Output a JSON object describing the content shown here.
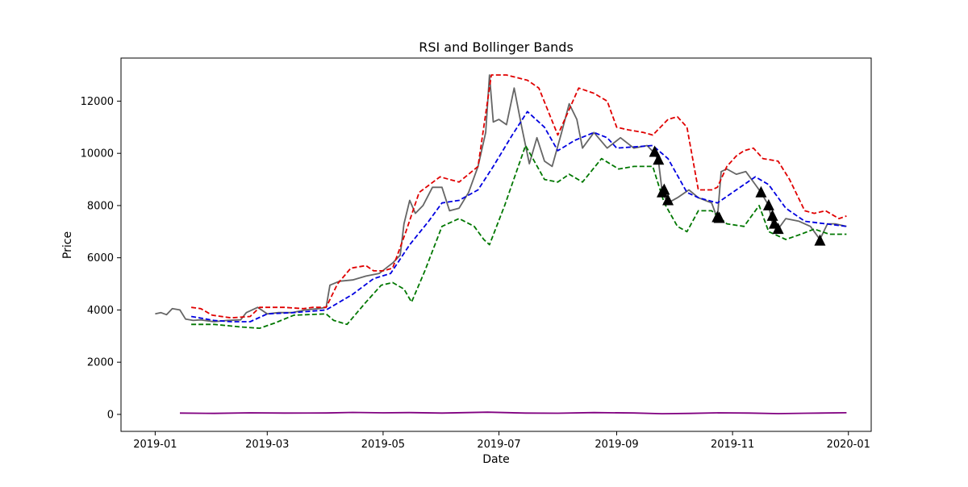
{
  "chart_data": {
    "type": "line",
    "title": "RSI and Bollinger Bands",
    "xlabel": "Date",
    "ylabel": "Price",
    "xlim": [
      "2018-12-14",
      "2020-01-13"
    ],
    "ylim": [
      -650,
      13650
    ],
    "x_ticks": [
      "2019-01-01",
      "2019-03-01",
      "2019-05-01",
      "2019-07-01",
      "2019-09-01",
      "2019-11-01",
      "2020-01-01"
    ],
    "x_tick_labels": [
      "2019-01",
      "2019-03",
      "2019-05",
      "2019-07",
      "2019-09",
      "2019-11",
      "2020-01"
    ],
    "y_ticks": [
      0,
      2000,
      4000,
      6000,
      8000,
      10000,
      12000
    ],
    "y_tick_labels": [
      "0",
      "2000",
      "4000",
      "6000",
      "8000",
      "10000",
      "12000"
    ],
    "grid": false,
    "series": [
      {
        "key": "price",
        "color": "#666666",
        "style": "solid",
        "points": [
          [
            "2019-01-01",
            3850
          ],
          [
            "2019-01-04",
            3900
          ],
          [
            "2019-01-07",
            3820
          ],
          [
            "2019-01-10",
            4050
          ],
          [
            "2019-01-14",
            4000
          ],
          [
            "2019-01-17",
            3650
          ],
          [
            "2019-01-21",
            3600
          ],
          [
            "2019-01-25",
            3620
          ],
          [
            "2019-02-01",
            3550
          ],
          [
            "2019-02-08",
            3600
          ],
          [
            "2019-02-15",
            3620
          ],
          [
            "2019-02-18",
            3900
          ],
          [
            "2019-02-24",
            4100
          ],
          [
            "2019-03-01",
            3850
          ],
          [
            "2019-03-07",
            3900
          ],
          [
            "2019-03-14",
            3900
          ],
          [
            "2019-03-21",
            4000
          ],
          [
            "2019-03-28",
            4050
          ],
          [
            "2019-04-01",
            4100
          ],
          [
            "2019-04-03",
            4950
          ],
          [
            "2019-04-08",
            5100
          ],
          [
            "2019-04-15",
            5150
          ],
          [
            "2019-04-22",
            5300
          ],
          [
            "2019-04-29",
            5400
          ],
          [
            "2019-05-06",
            5800
          ],
          [
            "2019-05-10",
            6100
          ],
          [
            "2019-05-12",
            7300
          ],
          [
            "2019-05-15",
            8200
          ],
          [
            "2019-05-18",
            7700
          ],
          [
            "2019-05-22",
            8000
          ],
          [
            "2019-05-27",
            8700
          ],
          [
            "2019-06-01",
            8700
          ],
          [
            "2019-06-05",
            7800
          ],
          [
            "2019-06-10",
            7900
          ],
          [
            "2019-06-15",
            8500
          ],
          [
            "2019-06-20",
            9500
          ],
          [
            "2019-06-24",
            10800
          ],
          [
            "2019-06-26",
            13000
          ],
          [
            "2019-06-28",
            11200
          ],
          [
            "2019-07-01",
            11300
          ],
          [
            "2019-07-05",
            11100
          ],
          [
            "2019-07-09",
            12500
          ],
          [
            "2019-07-13",
            11000
          ],
          [
            "2019-07-17",
            9600
          ],
          [
            "2019-07-21",
            10600
          ],
          [
            "2019-07-25",
            9700
          ],
          [
            "2019-07-29",
            9500
          ],
          [
            "2019-08-03",
            10800
          ],
          [
            "2019-08-07",
            11900
          ],
          [
            "2019-08-11",
            11300
          ],
          [
            "2019-08-14",
            10200
          ],
          [
            "2019-08-20",
            10800
          ],
          [
            "2019-08-27",
            10200
          ],
          [
            "2019-09-03",
            10600
          ],
          [
            "2019-09-10",
            10200
          ],
          [
            "2019-09-17",
            10300
          ],
          [
            "2019-09-21",
            10000
          ],
          [
            "2019-09-23",
            9700
          ],
          [
            "2019-09-25",
            8500
          ],
          [
            "2019-09-28",
            8100
          ],
          [
            "2019-10-03",
            8300
          ],
          [
            "2019-10-09",
            8600
          ],
          [
            "2019-10-14",
            8300
          ],
          [
            "2019-10-21",
            8100
          ],
          [
            "2019-10-24",
            7500
          ],
          [
            "2019-10-26",
            9300
          ],
          [
            "2019-10-29",
            9400
          ],
          [
            "2019-11-03",
            9200
          ],
          [
            "2019-11-08",
            9300
          ],
          [
            "2019-11-13",
            8800
          ],
          [
            "2019-11-16",
            8500
          ],
          [
            "2019-11-20",
            8000
          ],
          [
            "2019-11-22",
            7300
          ],
          [
            "2019-11-25",
            7100
          ],
          [
            "2019-11-29",
            7500
          ],
          [
            "2019-12-06",
            7400
          ],
          [
            "2019-12-12",
            7200
          ],
          [
            "2019-12-17",
            6700
          ],
          [
            "2019-12-21",
            7300
          ],
          [
            "2019-12-25",
            7300
          ],
          [
            "2019-12-31",
            7200
          ]
        ]
      },
      {
        "key": "upper",
        "color": "#e00000",
        "style": "dashed",
        "points": [
          [
            "2019-01-20",
            4100
          ],
          [
            "2019-01-25",
            4050
          ],
          [
            "2019-01-31",
            3800
          ],
          [
            "2019-02-10",
            3700
          ],
          [
            "2019-02-20",
            3750
          ],
          [
            "2019-02-25",
            4100
          ],
          [
            "2019-03-10",
            4100
          ],
          [
            "2019-03-20",
            4050
          ],
          [
            "2019-03-25",
            4100
          ],
          [
            "2019-04-01",
            4100
          ],
          [
            "2019-04-07",
            5000
          ],
          [
            "2019-04-14",
            5600
          ],
          [
            "2019-04-22",
            5700
          ],
          [
            "2019-04-26",
            5500
          ],
          [
            "2019-05-01",
            5500
          ],
          [
            "2019-05-06",
            5600
          ],
          [
            "2019-05-13",
            7000
          ],
          [
            "2019-05-20",
            8500
          ],
          [
            "2019-05-31",
            9100
          ],
          [
            "2019-06-05",
            9000
          ],
          [
            "2019-06-10",
            8900
          ],
          [
            "2019-06-20",
            9500
          ],
          [
            "2019-06-27",
            13000
          ],
          [
            "2019-07-05",
            13000
          ],
          [
            "2019-07-16",
            12800
          ],
          [
            "2019-07-22",
            12500
          ],
          [
            "2019-08-01",
            10700
          ],
          [
            "2019-08-12",
            12500
          ],
          [
            "2019-08-20",
            12300
          ],
          [
            "2019-08-27",
            12000
          ],
          [
            "2019-09-01",
            11000
          ],
          [
            "2019-09-07",
            10900
          ],
          [
            "2019-09-15",
            10800
          ],
          [
            "2019-09-20",
            10700
          ],
          [
            "2019-09-28",
            11300
          ],
          [
            "2019-10-03",
            11400
          ],
          [
            "2019-10-08",
            11000
          ],
          [
            "2019-10-14",
            8600
          ],
          [
            "2019-10-21",
            8600
          ],
          [
            "2019-10-24",
            8700
          ],
          [
            "2019-10-29",
            9500
          ],
          [
            "2019-11-03",
            9900
          ],
          [
            "2019-11-07",
            10100
          ],
          [
            "2019-11-12",
            10200
          ],
          [
            "2019-11-17",
            9800
          ],
          [
            "2019-11-25",
            9700
          ],
          [
            "2019-12-01",
            9000
          ],
          [
            "2019-12-09",
            7800
          ],
          [
            "2019-12-14",
            7700
          ],
          [
            "2019-12-20",
            7800
          ],
          [
            "2019-12-27",
            7500
          ],
          [
            "2019-12-31",
            7600
          ]
        ]
      },
      {
        "key": "middle",
        "color": "#0000e0",
        "style": "dashed",
        "points": [
          [
            "2019-01-20",
            3750
          ],
          [
            "2019-02-01",
            3600
          ],
          [
            "2019-02-10",
            3550
          ],
          [
            "2019-02-20",
            3550
          ],
          [
            "2019-03-01",
            3850
          ],
          [
            "2019-03-15",
            3900
          ],
          [
            "2019-04-01",
            4000
          ],
          [
            "2019-04-15",
            4600
          ],
          [
            "2019-04-26",
            5200
          ],
          [
            "2019-05-05",
            5400
          ],
          [
            "2019-05-15",
            6500
          ],
          [
            "2019-05-25",
            7400
          ],
          [
            "2019-06-01",
            8100
          ],
          [
            "2019-06-10",
            8200
          ],
          [
            "2019-06-20",
            8600
          ],
          [
            "2019-06-28",
            9500
          ],
          [
            "2019-07-08",
            10700
          ],
          [
            "2019-07-16",
            11600
          ],
          [
            "2019-07-25",
            11000
          ],
          [
            "2019-08-01",
            10100
          ],
          [
            "2019-08-10",
            10500
          ],
          [
            "2019-08-20",
            10800
          ],
          [
            "2019-08-27",
            10600
          ],
          [
            "2019-09-01",
            10200
          ],
          [
            "2019-09-20",
            10300
          ],
          [
            "2019-09-28",
            9800
          ],
          [
            "2019-10-08",
            8500
          ],
          [
            "2019-10-14",
            8300
          ],
          [
            "2019-10-24",
            8100
          ],
          [
            "2019-11-03",
            8600
          ],
          [
            "2019-11-13",
            9100
          ],
          [
            "2019-11-20",
            8800
          ],
          [
            "2019-11-29",
            7900
          ],
          [
            "2019-12-09",
            7400
          ],
          [
            "2019-12-20",
            7300
          ],
          [
            "2019-12-31",
            7200
          ]
        ]
      },
      {
        "key": "lower",
        "color": "#007700",
        "style": "dashed",
        "points": [
          [
            "2019-01-20",
            3450
          ],
          [
            "2019-02-01",
            3450
          ],
          [
            "2019-02-15",
            3350
          ],
          [
            "2019-02-25",
            3300
          ],
          [
            "2019-03-05",
            3500
          ],
          [
            "2019-03-15",
            3800
          ],
          [
            "2019-04-01",
            3850
          ],
          [
            "2019-04-05",
            3600
          ],
          [
            "2019-04-12",
            3450
          ],
          [
            "2019-04-22",
            4300
          ],
          [
            "2019-04-30",
            4950
          ],
          [
            "2019-05-06",
            5050
          ],
          [
            "2019-05-12",
            4800
          ],
          [
            "2019-05-16",
            4300
          ],
          [
            "2019-05-23",
            5500
          ],
          [
            "2019-06-01",
            7200
          ],
          [
            "2019-06-10",
            7500
          ],
          [
            "2019-06-18",
            7200
          ],
          [
            "2019-06-23",
            6700
          ],
          [
            "2019-06-26",
            6500
          ],
          [
            "2019-07-04",
            8000
          ],
          [
            "2019-07-15",
            10300
          ],
          [
            "2019-07-25",
            9000
          ],
          [
            "2019-08-01",
            8900
          ],
          [
            "2019-08-07",
            9200
          ],
          [
            "2019-08-14",
            8900
          ],
          [
            "2019-08-24",
            9800
          ],
          [
            "2019-09-02",
            9400
          ],
          [
            "2019-09-10",
            9500
          ],
          [
            "2019-09-20",
            9500
          ],
          [
            "2019-09-26",
            8100
          ],
          [
            "2019-10-03",
            7200
          ],
          [
            "2019-10-08",
            7000
          ],
          [
            "2019-10-14",
            7800
          ],
          [
            "2019-10-21",
            7800
          ],
          [
            "2019-10-29",
            7300
          ],
          [
            "2019-11-07",
            7200
          ],
          [
            "2019-11-15",
            8000
          ],
          [
            "2019-11-20",
            7000
          ],
          [
            "2019-11-29",
            6700
          ],
          [
            "2019-12-07",
            6900
          ],
          [
            "2019-12-14",
            7100
          ],
          [
            "2019-12-22",
            6900
          ],
          [
            "2019-12-31",
            6900
          ]
        ]
      },
      {
        "key": "rsi",
        "color": "#800080",
        "style": "solid",
        "points": [
          [
            "2019-01-14",
            50
          ],
          [
            "2019-02-01",
            40
          ],
          [
            "2019-02-20",
            60
          ],
          [
            "2019-03-10",
            50
          ],
          [
            "2019-04-01",
            55
          ],
          [
            "2019-04-15",
            75
          ],
          [
            "2019-05-01",
            60
          ],
          [
            "2019-05-15",
            70
          ],
          [
            "2019-06-01",
            50
          ],
          [
            "2019-06-25",
            85
          ],
          [
            "2019-07-15",
            50
          ],
          [
            "2019-08-01",
            45
          ],
          [
            "2019-08-20",
            70
          ],
          [
            "2019-09-10",
            55
          ],
          [
            "2019-09-25",
            25
          ],
          [
            "2019-10-10",
            40
          ],
          [
            "2019-10-25",
            60
          ],
          [
            "2019-11-10",
            50
          ],
          [
            "2019-11-25",
            30
          ],
          [
            "2019-12-10",
            45
          ],
          [
            "2019-12-31",
            65
          ]
        ]
      }
    ],
    "markers": {
      "shape": "triangle-up",
      "color": "#000000",
      "points": [
        [
          "2019-09-21",
          10050
        ],
        [
          "2019-09-23",
          9750
        ],
        [
          "2019-09-25",
          8500
        ],
        [
          "2019-09-26",
          8600
        ],
        [
          "2019-09-28",
          8200
        ],
        [
          "2019-10-24",
          7550
        ],
        [
          "2019-10-25",
          7520
        ],
        [
          "2019-11-16",
          8500
        ],
        [
          "2019-11-20",
          8000
        ],
        [
          "2019-11-22",
          7600
        ],
        [
          "2019-11-23",
          7300
        ],
        [
          "2019-11-25",
          7100
        ],
        [
          "2019-12-17",
          6650
        ]
      ]
    }
  }
}
